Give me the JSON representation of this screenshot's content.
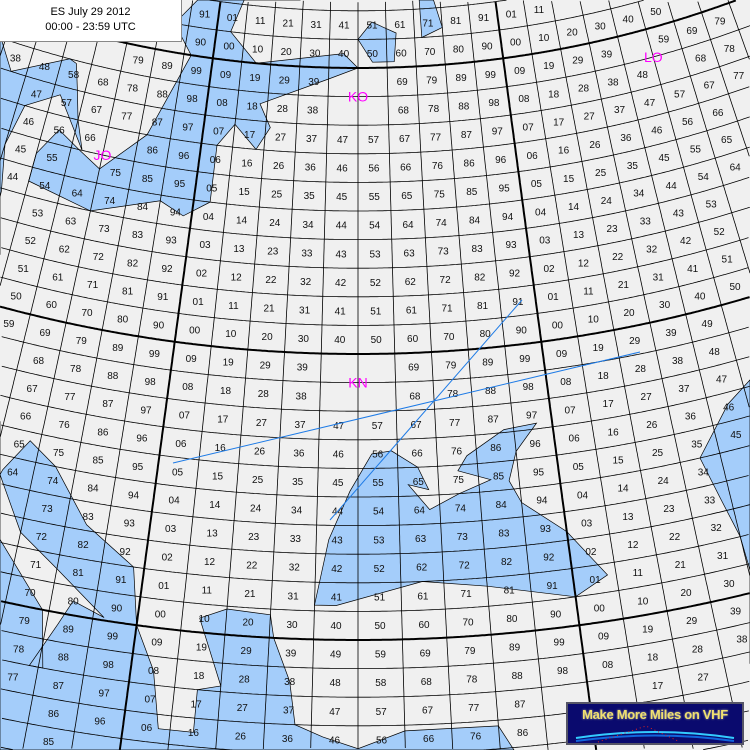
{
  "header": {
    "line1": "ES July  29 2012",
    "line2": "00:00 - 23:59  UTC"
  },
  "fields": [
    {
      "label": "JO",
      "lon": 13,
      "lat": 55.6
    },
    {
      "label": "KO",
      "lon": 30,
      "lat": 58.6
    },
    {
      "label": "KN",
      "lon": 30,
      "lat": 48.6
    },
    {
      "label": "LO",
      "lon": 50.5,
      "lat": 58.6
    }
  ],
  "logo": {
    "text": "Make More Miles on VHF"
  },
  "colors": {
    "land": "#f0f0f0",
    "sea": "#a4cdfa",
    "grid": "#000000",
    "path": "#1e7be6",
    "field_label": "#ff00ff",
    "logo_bg": "#0a0a6e",
    "logo_text": "#f0e070"
  },
  "grid": {
    "type": "maidenhead-locator",
    "square_label_format": "lon-digit lat-digit"
  }
}
